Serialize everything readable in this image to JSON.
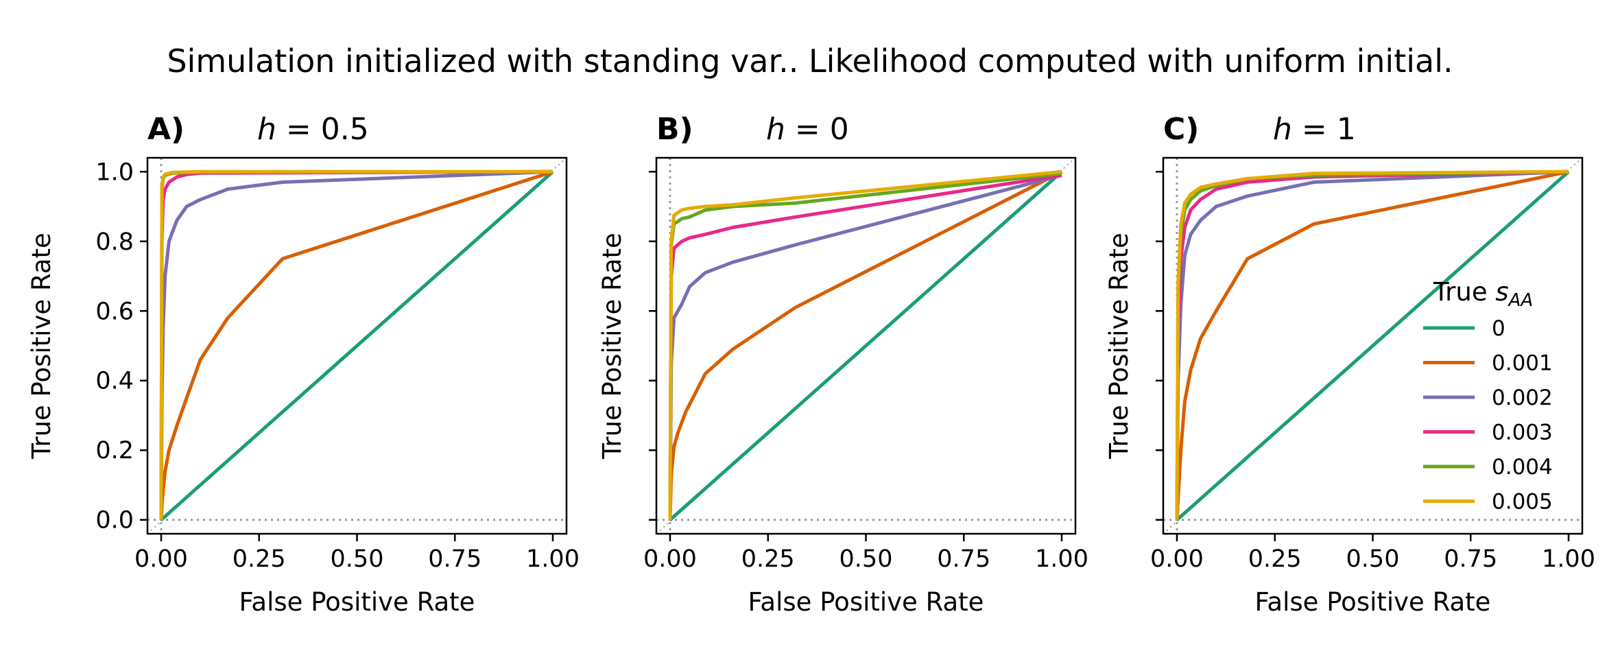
{
  "figure": {
    "title": "Simulation initialized with standing var.. Likelihood computed with uniform initial."
  },
  "legend": {
    "title_main": "True ",
    "title_sub_s": "s",
    "title_sub_aa": "AA",
    "location": "lower-right",
    "panel": 2
  },
  "colors": {
    "series": [
      "#1b9e77",
      "#d95f02",
      "#7570b3",
      "#e7298a",
      "#66a61e",
      "#e6ab02"
    ],
    "reference_line": "#999999"
  },
  "chart_data": [
    {
      "type": "line",
      "panel_label": "A)",
      "title_var": "h",
      "title_eq": " = 0.5",
      "xlabel": "False Positive Rate",
      "ylabel": "True Positive Rate",
      "xlim": [
        -0.035,
        1.035
      ],
      "ylim": [
        -0.04,
        1.04
      ],
      "xticks": [
        "0.00",
        "0.25",
        "0.50",
        "0.75",
        "1.00"
      ],
      "yticks": [
        "0.0",
        "0.2",
        "0.4",
        "0.6",
        "0.8",
        "1.0"
      ],
      "ytick_labels_shown": true,
      "series": [
        {
          "name": "0",
          "x": [
            0,
            1
          ],
          "y": [
            0,
            1
          ]
        },
        {
          "name": "0.001",
          "x": [
            0,
            0.003,
            0.01,
            0.02,
            0.04,
            0.065,
            0.1,
            0.17,
            0.31,
            1.0
          ],
          "y": [
            0,
            0.06,
            0.14,
            0.2,
            0.27,
            0.35,
            0.46,
            0.58,
            0.75,
            1.0
          ]
        },
        {
          "name": "0.002",
          "x": [
            0,
            0.002,
            0.005,
            0.01,
            0.02,
            0.04,
            0.065,
            0.1,
            0.17,
            0.31,
            1.0
          ],
          "y": [
            0,
            0.35,
            0.55,
            0.7,
            0.8,
            0.86,
            0.9,
            0.92,
            0.95,
            0.97,
            1.0
          ]
        },
        {
          "name": "0.003",
          "x": [
            0,
            0.002,
            0.005,
            0.01,
            0.02,
            0.04,
            0.065,
            0.1,
            1.0
          ],
          "y": [
            0,
            0.8,
            0.92,
            0.95,
            0.97,
            0.985,
            0.992,
            0.996,
            1.0
          ]
        },
        {
          "name": "0.004",
          "x": [
            0,
            0.002,
            0.005,
            0.01,
            0.03,
            0.1,
            1.0
          ],
          "y": [
            0,
            0.95,
            0.98,
            0.99,
            0.996,
            0.999,
            1.0
          ]
        },
        {
          "name": "0.005",
          "x": [
            0,
            0.002,
            0.005,
            0.01,
            0.03,
            0.1,
            1.0
          ],
          "y": [
            0,
            0.96,
            0.985,
            0.993,
            0.998,
            1.0,
            1.0
          ]
        }
      ]
    },
    {
      "type": "line",
      "panel_label": "B)",
      "title_var": "h",
      "title_eq": " = 0",
      "xlabel": "False Positive Rate",
      "ylabel": "True Positive Rate",
      "xlim": [
        -0.035,
        1.035
      ],
      "ylim": [
        -0.04,
        1.04
      ],
      "xticks": [
        "0.00",
        "0.25",
        "0.50",
        "0.75",
        "1.00"
      ],
      "yticks": [
        "0.0",
        "0.2",
        "0.4",
        "0.6",
        "0.8",
        "1.0"
      ],
      "ytick_labels_shown": false,
      "series": [
        {
          "name": "0",
          "x": [
            0,
            1
          ],
          "y": [
            0,
            1
          ]
        },
        {
          "name": "0.001",
          "x": [
            0,
            0.003,
            0.01,
            0.02,
            0.04,
            0.09,
            0.16,
            0.32,
            1.0
          ],
          "y": [
            0,
            0.13,
            0.21,
            0.25,
            0.31,
            0.42,
            0.49,
            0.61,
            1.0
          ]
        },
        {
          "name": "0.002",
          "x": [
            0,
            0.003,
            0.01,
            0.03,
            0.05,
            0.09,
            0.16,
            0.32,
            1.0
          ],
          "y": [
            0,
            0.45,
            0.58,
            0.62,
            0.67,
            0.71,
            0.74,
            0.79,
            0.99
          ]
        },
        {
          "name": "0.003",
          "x": [
            0,
            0.003,
            0.01,
            0.03,
            0.05,
            0.09,
            0.16,
            0.32,
            1.0
          ],
          "y": [
            0,
            0.7,
            0.78,
            0.8,
            0.81,
            0.82,
            0.84,
            0.87,
            0.99
          ]
        },
        {
          "name": "0.004",
          "x": [
            0,
            0.003,
            0.01,
            0.03,
            0.05,
            0.09,
            0.16,
            0.32,
            1.0
          ],
          "y": [
            0,
            0.79,
            0.85,
            0.865,
            0.87,
            0.89,
            0.9,
            0.91,
            0.995
          ]
        },
        {
          "name": "0.005",
          "x": [
            0,
            0.003,
            0.01,
            0.03,
            0.05,
            0.09,
            0.16,
            0.32,
            1.0
          ],
          "y": [
            0,
            0.8,
            0.875,
            0.89,
            0.895,
            0.9,
            0.905,
            0.925,
            1.0
          ]
        }
      ]
    },
    {
      "type": "line",
      "panel_label": "C)",
      "title_var": "h",
      "title_eq": " = 1",
      "xlabel": "False Positive Rate",
      "ylabel": "True Positive Rate",
      "xlim": [
        -0.035,
        1.035
      ],
      "ylim": [
        -0.04,
        1.04
      ],
      "xticks": [
        "0.00",
        "0.25",
        "0.50",
        "0.75",
        "1.00"
      ],
      "yticks": [
        "0.0",
        "0.2",
        "0.4",
        "0.6",
        "0.8",
        "1.0"
      ],
      "ytick_labels_shown": false,
      "series": [
        {
          "name": "0",
          "x": [
            0,
            1
          ],
          "y": [
            0,
            1
          ]
        },
        {
          "name": "0.001",
          "x": [
            0,
            0.005,
            0.01,
            0.02,
            0.035,
            0.06,
            0.1,
            0.18,
            0.35,
            1.0
          ],
          "y": [
            0,
            0.1,
            0.2,
            0.34,
            0.43,
            0.52,
            0.6,
            0.75,
            0.85,
            1.0
          ]
        },
        {
          "name": "0.002",
          "x": [
            0,
            0.003,
            0.01,
            0.02,
            0.035,
            0.06,
            0.1,
            0.18,
            0.35,
            1.0
          ],
          "y": [
            0,
            0.4,
            0.62,
            0.76,
            0.82,
            0.86,
            0.9,
            0.93,
            0.97,
            1.0
          ]
        },
        {
          "name": "0.003",
          "x": [
            0,
            0.003,
            0.01,
            0.02,
            0.035,
            0.06,
            0.1,
            0.18,
            0.35,
            1.0
          ],
          "y": [
            0,
            0.55,
            0.75,
            0.84,
            0.89,
            0.92,
            0.95,
            0.97,
            0.985,
            1.0
          ]
        },
        {
          "name": "0.004",
          "x": [
            0,
            0.003,
            0.01,
            0.02,
            0.035,
            0.06,
            0.1,
            0.18,
            0.35,
            1.0
          ],
          "y": [
            0,
            0.65,
            0.82,
            0.89,
            0.92,
            0.945,
            0.96,
            0.98,
            0.99,
            1.0
          ]
        },
        {
          "name": "0.005",
          "x": [
            0,
            0.003,
            0.01,
            0.02,
            0.035,
            0.06,
            0.1,
            0.18,
            0.35,
            1.0
          ],
          "y": [
            0,
            0.68,
            0.85,
            0.91,
            0.935,
            0.955,
            0.965,
            0.98,
            0.995,
            1.0
          ]
        }
      ]
    }
  ]
}
